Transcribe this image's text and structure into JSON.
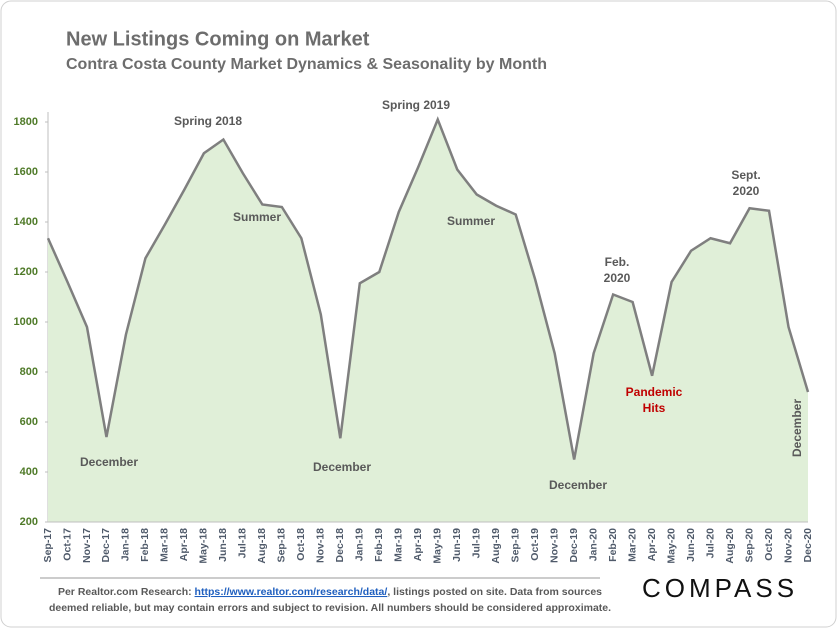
{
  "chart_data": {
    "type": "area",
    "title": "New Listings Coming on Market",
    "subtitle": "Contra Costa County Market Dynamics & Seasonality by Month",
    "categories": [
      "Sep-17",
      "Oct-17",
      "Nov-17",
      "Dec-17",
      "Jan-18",
      "Feb-18",
      "Mar-18",
      "Apr-18",
      "May-18",
      "Jun-18",
      "Jul-18",
      "Aug-18",
      "Sep-18",
      "Oct-18",
      "Nov-18",
      "Dec-18",
      "Jan-19",
      "Feb-19",
      "Mar-19",
      "Apr-19",
      "May-19",
      "Jun-19",
      "Jul-19",
      "Aug-19",
      "Sep-19",
      "Oct-19",
      "Nov-19",
      "Dec-19",
      "Jan-20",
      "Feb-20",
      "Mar-20",
      "Apr-20",
      "May-20",
      "Jun-20",
      "Jul-20",
      "Aug-20",
      "Sep-20",
      "Oct-20",
      "Nov-20",
      "Dec-20"
    ],
    "values": [
      1335,
      1160,
      980,
      540,
      950,
      1255,
      1390,
      1530,
      1675,
      1730,
      1595,
      1470,
      1460,
      1335,
      1030,
      535,
      1155,
      1200,
      1440,
      1620,
      1810,
      1610,
      1510,
      1465,
      1430,
      1170,
      875,
      450,
      875,
      1110,
      1080,
      785,
      1160,
      1285,
      1335,
      1315,
      1455,
      1445,
      980,
      720
    ],
    "fill": "#e0efd8",
    "color": "#7f7f7f",
    "ylim": [
      200,
      1800
    ],
    "yticks": [
      200,
      400,
      600,
      800,
      1000,
      1200,
      1400,
      1600,
      1800
    ],
    "annotations": [
      {
        "lines": [
          "Spring 2018"
        ]
      },
      {
        "lines": [
          "Spring 2019"
        ]
      },
      {
        "lines": [
          "Summer"
        ]
      },
      {
        "lines": [
          "Summer"
        ]
      },
      {
        "lines": [
          "December"
        ]
      },
      {
        "lines": [
          "December"
        ]
      },
      {
        "lines": [
          "December"
        ]
      },
      {
        "lines": [
          "December"
        ]
      },
      {
        "lines": [
          "Feb.",
          "2020"
        ]
      },
      {
        "lines": [
          "Sept.",
          "2020"
        ]
      },
      {
        "lines": [
          "Pandemic",
          "Hits"
        ],
        "color": "#c00000"
      }
    ],
    "footer": {
      "prefix": "Per Realtor.com Research:",
      "link": "https://www.realtor.com/research/data/",
      "rest1": ", listings posted on site. Data from sources",
      "rest2": "deemed reliable, but may contain errors and subject to revision. All numbers should be considered approximate."
    },
    "logo": "COMPASS"
  }
}
